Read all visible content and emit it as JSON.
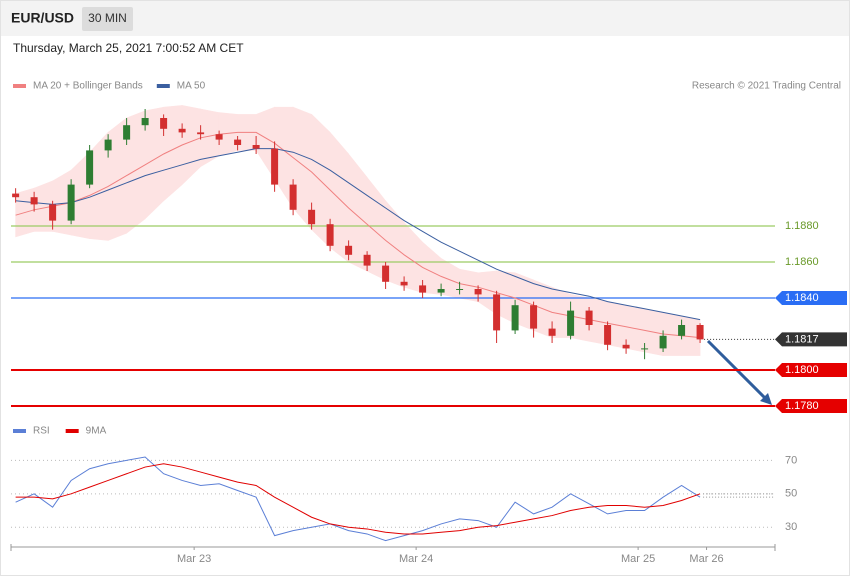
{
  "header": {
    "symbol": "EUR/USD",
    "interval": "30 MIN",
    "timestamp": "Thursday, March 25, 2021 7:00:52 AM CET"
  },
  "chart_data": [
    {
      "type": "candlestick",
      "source": "Research © 2021 Trading Central",
      "x": [
        0.5,
        2.5,
        4.5,
        6.5,
        8.5,
        10.5,
        12.5,
        14.5,
        16.5,
        18.5,
        20.5,
        22.5,
        24.5,
        26.5,
        28.5,
        30.5,
        32.5,
        34.5,
        36.5,
        38.5,
        40.5,
        42.5,
        44.5,
        46.5,
        48.5,
        50.5,
        52.5,
        54.5,
        56.5,
        58.5,
        60.5,
        62.5,
        64.5,
        66.5,
        68.5,
        70.5,
        72.5,
        74.5
      ],
      "xlim": [
        0,
        82.6
      ],
      "ylim": [
        1.1775,
        1.195
      ],
      "up_color": "#2e7d32",
      "down_color": "#d32f2f",
      "band_color": "#fde3e3",
      "open": [
        1.1898,
        1.1896,
        1.1892,
        1.1883,
        1.1903,
        1.1922,
        1.1928,
        1.1936,
        1.194,
        1.1934,
        1.1932,
        1.1931,
        1.1928,
        1.1925,
        1.1923,
        1.1903,
        1.1889,
        1.1881,
        1.1869,
        1.1864,
        1.1858,
        1.1849,
        1.1847,
        1.1843,
        1.1845,
        1.1845,
        1.1842,
        1.1822,
        1.1836,
        1.1823,
        1.1819,
        1.1833,
        1.1825,
        1.1814,
        1.1812,
        1.1812,
        1.1819,
        1.1825
      ],
      "high": [
        1.1901,
        1.1899,
        1.1894,
        1.1906,
        1.1925,
        1.1931,
        1.194,
        1.1945,
        1.1942,
        1.1937,
        1.1936,
        1.1933,
        1.193,
        1.193,
        1.1927,
        1.1906,
        1.1893,
        1.1884,
        1.1872,
        1.1866,
        1.186,
        1.1852,
        1.185,
        1.1848,
        1.1849,
        1.1847,
        1.1844,
        1.1839,
        1.1838,
        1.1827,
        1.1838,
        1.1835,
        1.1827,
        1.1817,
        1.1815,
        1.1822,
        1.1828,
        1.1826
      ],
      "low": [
        1.1893,
        1.1888,
        1.1878,
        1.1881,
        1.1901,
        1.1918,
        1.1925,
        1.1933,
        1.193,
        1.1929,
        1.1928,
        1.1925,
        1.1922,
        1.192,
        1.1899,
        1.1886,
        1.1878,
        1.1866,
        1.1861,
        1.1855,
        1.1845,
        1.1844,
        1.184,
        1.1841,
        1.1842,
        1.1838,
        1.1815,
        1.182,
        1.1818,
        1.1815,
        1.1817,
        1.1822,
        1.1811,
        1.1809,
        1.1806,
        1.181,
        1.1817,
        1.1815
      ],
      "close": [
        1.1896,
        1.1892,
        1.1883,
        1.1903,
        1.1922,
        1.1928,
        1.1936,
        1.194,
        1.1934,
        1.1932,
        1.1931,
        1.1928,
        1.1925,
        1.1923,
        1.1903,
        1.1889,
        1.1881,
        1.1869,
        1.1864,
        1.1858,
        1.1849,
        1.1847,
        1.1843,
        1.1845,
        1.1845,
        1.1842,
        1.1822,
        1.1836,
        1.1823,
        1.1819,
        1.1833,
        1.1825,
        1.1814,
        1.1812,
        1.1812,
        1.1819,
        1.1825,
        1.1817
      ],
      "series": [
        {
          "name": "MA 20 + Bollinger Bands",
          "color": "#f08080",
          "values": [
            1.1886,
            1.1889,
            1.1891,
            1.1893,
            1.1897,
            1.1902,
            1.1908,
            1.1914,
            1.192,
            1.1925,
            1.1929,
            1.1931,
            1.1932,
            1.1932,
            1.1926,
            1.1918,
            1.191,
            1.19,
            1.189,
            1.1881,
            1.1872,
            1.1864,
            1.1857,
            1.1852,
            1.1848,
            1.1846,
            1.1843,
            1.184,
            1.1836,
            1.1832,
            1.183,
            1.1828,
            1.1826,
            1.1824,
            1.1822,
            1.182,
            1.1819,
            1.1818
          ],
          "upper": [
            1.1898,
            1.1901,
            1.1905,
            1.1911,
            1.1921,
            1.1932,
            1.194,
            1.1944,
            1.1946,
            1.1947,
            1.1945,
            1.1943,
            1.1942,
            1.1942,
            1.1946,
            1.1946,
            1.1942,
            1.1932,
            1.192,
            1.1907,
            1.1894,
            1.1882,
            1.1871,
            1.1862,
            1.1856,
            1.1854,
            1.1855,
            1.1854,
            1.185,
            1.1846,
            1.1842,
            1.184,
            1.1838,
            1.1836,
            1.1834,
            1.1832,
            1.183,
            1.1828
          ],
          "lower": [
            1.1874,
            1.1877,
            1.1877,
            1.1875,
            1.1873,
            1.1872,
            1.1876,
            1.1884,
            1.1894,
            1.1903,
            1.1913,
            1.1919,
            1.1922,
            1.1922,
            1.1906,
            1.189,
            1.1878,
            1.1868,
            1.186,
            1.1855,
            1.185,
            1.1846,
            1.1843,
            1.1842,
            1.184,
            1.1838,
            1.1831,
            1.1826,
            1.1822,
            1.1818,
            1.1818,
            1.1816,
            1.1814,
            1.1812,
            1.181,
            1.1808,
            1.1808,
            1.1808
          ]
        },
        {
          "name": "MA 50",
          "color": "#3b5fa0",
          "values": [
            1.1894,
            1.1893,
            1.1892,
            1.1893,
            1.1896,
            1.19,
            1.1904,
            1.1908,
            1.1911,
            1.1914,
            1.1917,
            1.1919,
            1.1921,
            1.1923,
            1.1923,
            1.1921,
            1.1917,
            1.1911,
            1.1904,
            1.1897,
            1.189,
            1.1883,
            1.1877,
            1.1871,
            1.1866,
            1.1861,
            1.1856,
            1.1852,
            1.1848,
            1.1845,
            1.1843,
            1.1841,
            1.1838,
            1.1836,
            1.1834,
            1.1832,
            1.183,
            1.1828
          ]
        }
      ],
      "levels": [
        {
          "value": 1.188,
          "label": "1.1880",
          "color": "#9ccc65",
          "tag": false,
          "dotted": false
        },
        {
          "value": 1.186,
          "label": "1.1860",
          "color": "#9ccc65",
          "tag": false,
          "dotted": false
        },
        {
          "value": 1.184,
          "label": "1.1840",
          "color": "#2a6df4",
          "tag": true,
          "dotted": false
        },
        {
          "value": 1.1817,
          "label": "1.1817",
          "color": "#333333",
          "tag": true,
          "dotted": true
        },
        {
          "value": 1.18,
          "label": "1.1800",
          "color": "#e50000",
          "tag": true,
          "dotted": false
        },
        {
          "value": 1.178,
          "label": "1.1780",
          "color": "#e50000",
          "tag": true,
          "dotted": false
        }
      ]
    },
    {
      "type": "line",
      "x": [
        0.5,
        2.5,
        4.5,
        6.5,
        8.5,
        10.5,
        12.5,
        14.5,
        16.5,
        18.5,
        20.5,
        22.5,
        24.5,
        26.5,
        28.5,
        30.5,
        32.5,
        34.5,
        36.5,
        38.5,
        40.5,
        42.5,
        44.5,
        46.5,
        48.5,
        50.5,
        52.5,
        54.5,
        56.5,
        58.5,
        60.5,
        62.5,
        64.5,
        66.5,
        68.5,
        70.5,
        72.5,
        74.5
      ],
      "xlim": [
        0,
        82.6
      ],
      "xticks": [
        {
          "value": 19.8,
          "label": "Mar 23"
        },
        {
          "value": 43.8,
          "label": "Mar 24"
        },
        {
          "value": 67.8,
          "label": "Mar 25"
        },
        {
          "value": 75.2,
          "label": "Mar 26"
        }
      ],
      "ylim": [
        20,
        75
      ],
      "yticks": [
        30,
        50,
        70
      ],
      "grid": true,
      "series": [
        {
          "name": "RSI",
          "color": "#5b7fd6",
          "values": [
            45,
            50,
            42,
            58,
            65,
            68,
            70,
            72,
            62,
            58,
            55,
            56,
            52,
            48,
            25,
            28,
            30,
            32,
            28,
            26,
            22,
            25,
            28,
            32,
            35,
            34,
            30,
            45,
            38,
            42,
            50,
            44,
            38,
            40,
            40,
            48,
            55,
            48
          ]
        },
        {
          "name": "9MA",
          "color": "#e00000",
          "values": [
            48,
            48,
            47,
            50,
            54,
            58,
            62,
            66,
            68,
            66,
            63,
            60,
            57,
            55,
            48,
            42,
            36,
            32,
            30,
            29,
            27,
            26,
            26,
            27,
            28,
            30,
            31,
            33,
            35,
            37,
            40,
            42,
            43,
            43,
            42,
            43,
            46,
            50
          ]
        }
      ]
    }
  ]
}
